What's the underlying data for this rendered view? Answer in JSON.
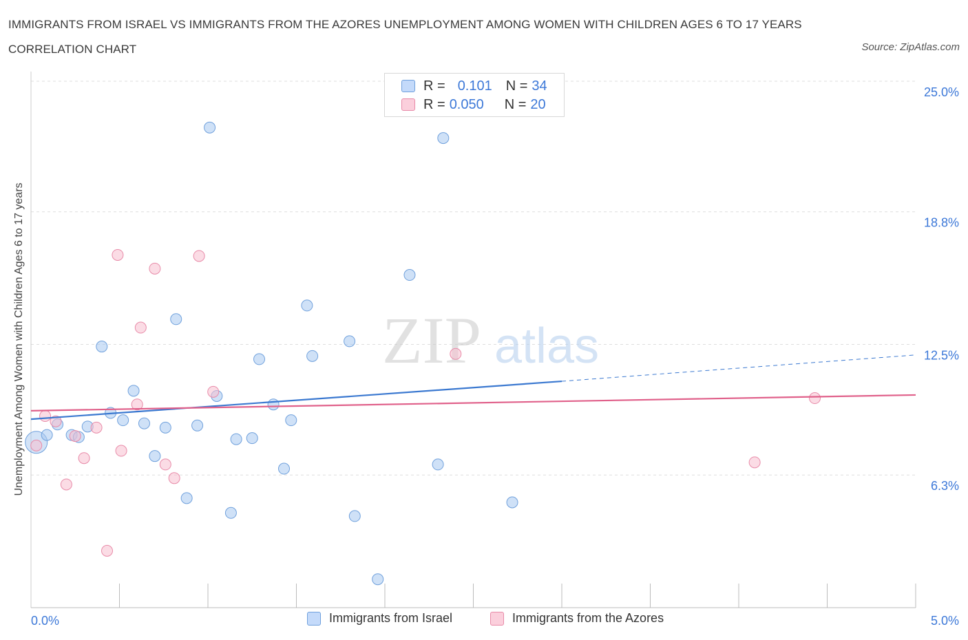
{
  "title": "IMMIGRANTS FROM ISRAEL VS IMMIGRANTS FROM THE AZORES UNEMPLOYMENT AMONG WOMEN WITH CHILDREN AGES 6 TO 17 YEARS CORRELATION CHART",
  "source": "Source: ZipAtlas.com",
  "watermark": {
    "part1": "ZIP",
    "part2": "atlas"
  },
  "legend_top": {
    "rows": [
      {
        "r_label": "R =",
        "r_value": "0.101",
        "n_label": "N =",
        "n_value": "34"
      },
      {
        "r_label": "R =",
        "r_value": "0.050",
        "n_label": "N =",
        "n_value": "20"
      }
    ]
  },
  "chart_data": {
    "type": "scatter",
    "title": "IMMIGRANTS FROM ISRAEL VS IMMIGRANTS FROM THE AZORES UNEMPLOYMENT AMONG WOMEN WITH CHILDREN AGES 6 TO 17 YEARS CORRELATION CHART",
    "xlabel": "",
    "ylabel": "Unemployment Among Women with Children Ages 6 to 17 years",
    "xlim": [
      0,
      5
    ],
    "ylim": [
      0,
      25
    ],
    "x_tick_labels": [
      "0.0%",
      "5.0%"
    ],
    "y_tick_labels": [
      "25.0%",
      "18.8%",
      "12.5%",
      "6.3%"
    ],
    "y_ticks": [
      25.0,
      18.8,
      12.5,
      6.3
    ],
    "x_minor_ticks": [
      0.5,
      1.0,
      1.5,
      2.0,
      2.5,
      3.0,
      3.5,
      4.0,
      4.5,
      5.0
    ],
    "grid": true,
    "legend_position": "bottom-center",
    "series": [
      {
        "name": "Immigrants from Israel",
        "color": "#a8c8f0",
        "stroke": "#6fa0dc",
        "line_color": "#3a78d0",
        "R": 0.101,
        "N": 34,
        "trend": {
          "x0": 0.0,
          "y0": 8.95,
          "x1": 3.0,
          "y1": 10.75,
          "dashed_to_x": 5.0,
          "dashed_to_y": 12.0
        },
        "points": [
          {
            "x": 0.03,
            "y": 7.85,
            "big": true
          },
          {
            "x": 0.09,
            "y": 8.2
          },
          {
            "x": 0.15,
            "y": 8.7
          },
          {
            "x": 0.23,
            "y": 8.2
          },
          {
            "x": 0.27,
            "y": 8.1
          },
          {
            "x": 0.32,
            "y": 8.6
          },
          {
            "x": 0.4,
            "y": 12.4
          },
          {
            "x": 0.45,
            "y": 9.25
          },
          {
            "x": 0.52,
            "y": 8.9
          },
          {
            "x": 0.58,
            "y": 10.3
          },
          {
            "x": 0.64,
            "y": 8.75
          },
          {
            "x": 0.7,
            "y": 7.2
          },
          {
            "x": 0.76,
            "y": 8.55
          },
          {
            "x": 0.82,
            "y": 13.7
          },
          {
            "x": 0.88,
            "y": 5.2
          },
          {
            "x": 0.94,
            "y": 8.65
          },
          {
            "x": 1.01,
            "y": 22.8
          },
          {
            "x": 1.05,
            "y": 10.05
          },
          {
            "x": 1.13,
            "y": 4.5
          },
          {
            "x": 1.16,
            "y": 8.0
          },
          {
            "x": 1.25,
            "y": 8.05
          },
          {
            "x": 1.29,
            "y": 11.8
          },
          {
            "x": 1.37,
            "y": 9.65
          },
          {
            "x": 1.43,
            "y": 6.6
          },
          {
            "x": 1.47,
            "y": 8.9
          },
          {
            "x": 1.56,
            "y": 14.35
          },
          {
            "x": 1.59,
            "y": 11.95
          },
          {
            "x": 1.8,
            "y": 12.65
          },
          {
            "x": 1.83,
            "y": 4.35
          },
          {
            "x": 1.96,
            "y": 1.35
          },
          {
            "x": 2.14,
            "y": 15.8
          },
          {
            "x": 2.3,
            "y": 6.8
          },
          {
            "x": 2.33,
            "y": 22.3
          },
          {
            "x": 2.72,
            "y": 5.0
          }
        ]
      },
      {
        "name": "Immigrants from the Azores",
        "color": "#f7bfd0",
        "stroke": "#e88aa8",
        "line_color": "#e0608a",
        "R": 0.05,
        "N": 20,
        "trend": {
          "x0": 0.0,
          "y0": 9.35,
          "x1": 5.0,
          "y1": 10.1
        },
        "points": [
          {
            "x": 0.03,
            "y": 7.7
          },
          {
            "x": 0.08,
            "y": 9.1
          },
          {
            "x": 0.14,
            "y": 8.85
          },
          {
            "x": 0.2,
            "y": 5.85
          },
          {
            "x": 0.25,
            "y": 8.15
          },
          {
            "x": 0.3,
            "y": 7.1
          },
          {
            "x": 0.37,
            "y": 8.55
          },
          {
            "x": 0.43,
            "y": 2.7
          },
          {
            "x": 0.49,
            "y": 16.75
          },
          {
            "x": 0.51,
            "y": 7.45
          },
          {
            "x": 0.6,
            "y": 9.65
          },
          {
            "x": 0.62,
            "y": 13.3
          },
          {
            "x": 0.7,
            "y": 16.1
          },
          {
            "x": 0.76,
            "y": 6.8
          },
          {
            "x": 0.81,
            "y": 6.15
          },
          {
            "x": 0.95,
            "y": 16.7
          },
          {
            "x": 1.03,
            "y": 10.25
          },
          {
            "x": 2.4,
            "y": 12.05
          },
          {
            "x": 4.09,
            "y": 6.9
          },
          {
            "x": 4.43,
            "y": 9.95
          }
        ]
      }
    ]
  }
}
